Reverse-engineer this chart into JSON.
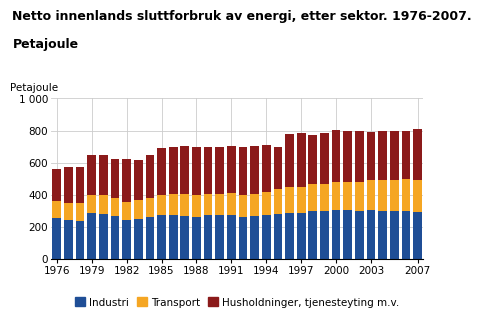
{
  "title_line1": "Netto innenlands sluttforbruk av energi, etter sektor. 1976-2007.",
  "title_line2": "Petajoule",
  "ylabel": "Petajoule",
  "ylim": [
    0,
    1000
  ],
  "yticks": [
    0,
    200,
    400,
    600,
    800,
    1000
  ],
  "ytick_labels": [
    "0",
    "200",
    "400",
    "600",
    "800",
    "1 000"
  ],
  "years": [
    1976,
    1977,
    1978,
    1979,
    1980,
    1981,
    1982,
    1983,
    1984,
    1985,
    1986,
    1987,
    1988,
    1989,
    1990,
    1991,
    1992,
    1993,
    1994,
    1995,
    1996,
    1997,
    1998,
    1999,
    2000,
    2001,
    2002,
    2003,
    2004,
    2005,
    2006,
    2007
  ],
  "xtick_years": [
    1976,
    1979,
    1982,
    1985,
    1988,
    1991,
    1994,
    1997,
    2000,
    2003,
    2007
  ],
  "industri": [
    252,
    240,
    235,
    285,
    280,
    265,
    240,
    250,
    260,
    270,
    270,
    265,
    260,
    270,
    270,
    270,
    260,
    265,
    270,
    280,
    285,
    285,
    300,
    300,
    305,
    305,
    300,
    305,
    300,
    295,
    295,
    290
  ],
  "transport": [
    105,
    105,
    110,
    115,
    115,
    115,
    115,
    115,
    120,
    130,
    135,
    140,
    140,
    135,
    135,
    140,
    140,
    140,
    145,
    155,
    160,
    165,
    165,
    165,
    175,
    175,
    180,
    185,
    190,
    195,
    200,
    200
  ],
  "husholdninger": [
    200,
    230,
    230,
    250,
    255,
    240,
    265,
    250,
    265,
    290,
    295,
    300,
    300,
    295,
    295,
    295,
    300,
    300,
    295,
    265,
    335,
    335,
    310,
    320,
    325,
    315,
    320,
    300,
    310,
    310,
    305,
    320
  ],
  "colors": {
    "industri": "#1f4e96",
    "transport": "#f5a623",
    "husholdninger": "#8b1a1a"
  },
  "legend_labels": [
    "Industri",
    "Transport",
    "Husholdninger, tjenesteyting m.v."
  ],
  "background_color": "#ffffff",
  "grid_color": "#cccccc",
  "title_fontsize": 9,
  "axis_fontsize": 7.5,
  "legend_fontsize": 7.5
}
